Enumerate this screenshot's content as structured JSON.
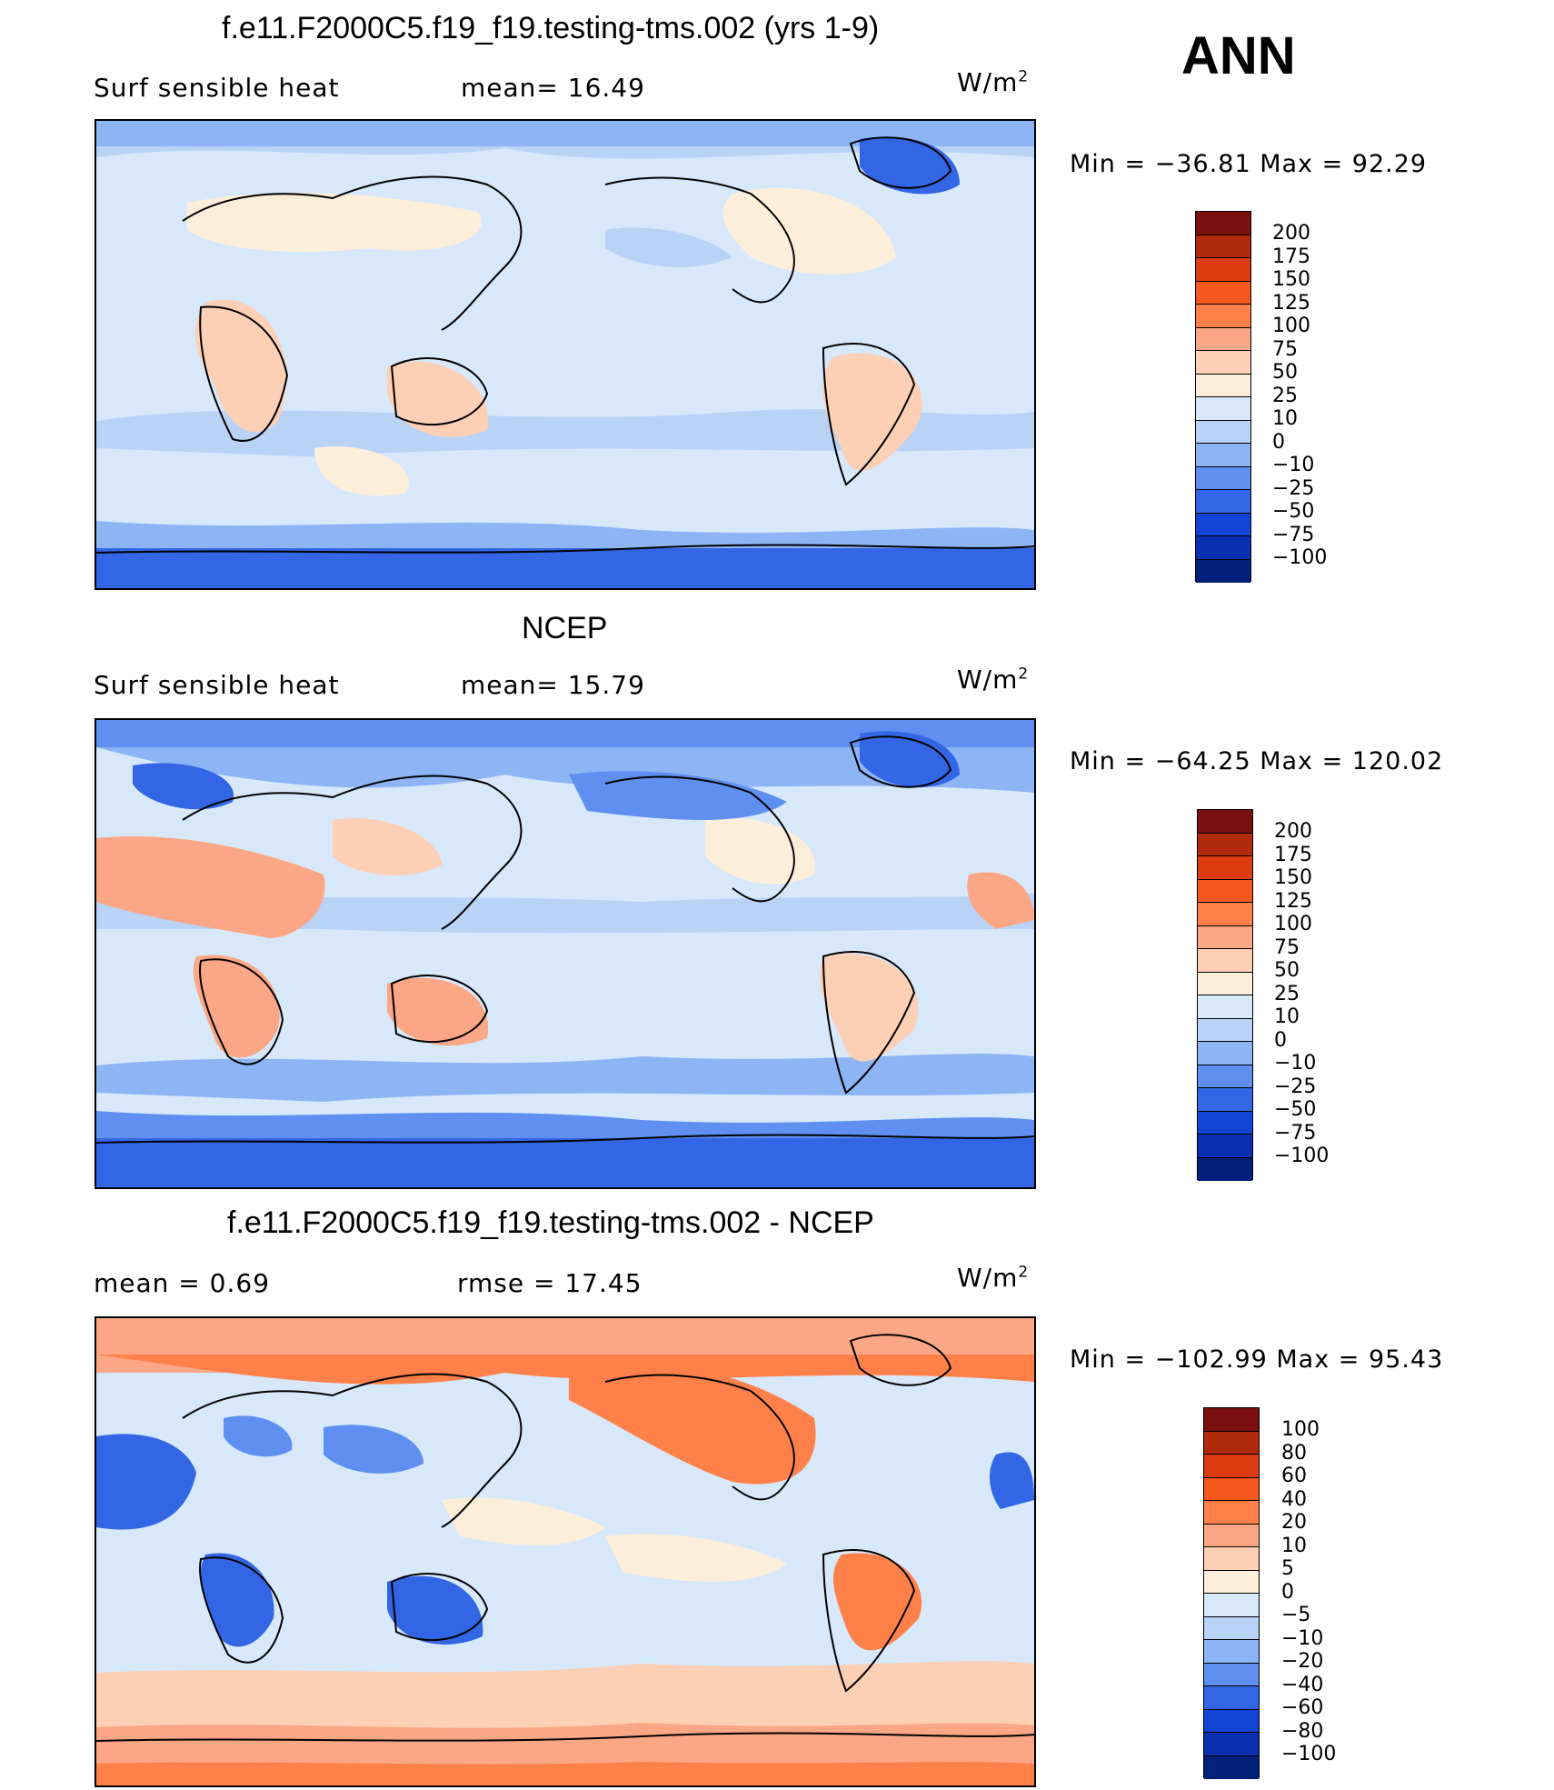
{
  "season": "ANN",
  "units_base": "W/m",
  "units_exp": "2",
  "panels": [
    {
      "title": "f.e11.F2000C5.f19_f19.testing-tms.002 (yrs 1-9)",
      "left_label": "Surf  sensible  heat",
      "center_label": "mean=   16.49",
      "minmax": "Min  =  −36.81  Max  =    92.29",
      "levels": [
        "200",
        "175",
        "150",
        "125",
        "100",
        "75",
        "50",
        "25",
        "10",
        "0",
        "−10",
        "−25",
        "−50",
        "−75",
        "−100"
      ]
    },
    {
      "title": "NCEP",
      "left_label": "Surf  sensible  heat",
      "center_label": "mean=   15.79",
      "minmax": "Min  =  −64.25  Max  =  120.02",
      "levels": [
        "200",
        "175",
        "150",
        "125",
        "100",
        "75",
        "50",
        "25",
        "10",
        "0",
        "−10",
        "−25",
        "−50",
        "−75",
        "−100"
      ]
    },
    {
      "title": "f.e11.F2000C5.f19_f19.testing-tms.002 - NCEP",
      "left_label": "mean  =      0.69",
      "center_label": "rmse  =    17.45",
      "minmax": "Min  =  −102.99  Max  =    95.43",
      "levels": [
        "100",
        "80",
        "60",
        "40",
        "20",
        "10",
        "5",
        "0",
        "−5",
        "−10",
        "−20",
        "−40",
        "−60",
        "−80",
        "−100"
      ]
    }
  ],
  "colors": {
    "abs_scale": [
      "#7a0f0f",
      "#b22a0c",
      "#dc3c10",
      "#f5581f",
      "#ff8149",
      "#fba684",
      "#fdcfb4",
      "#fdeed9",
      "#d7e8fb",
      "#b9d3f7",
      "#8db4f4",
      "#5f8ff0",
      "#3266e4",
      "#1244d6",
      "#0a2fb0",
      "#00207a"
    ],
    "diff_scale": [
      "#7a0f0f",
      "#b22a0c",
      "#dc3c10",
      "#f5581f",
      "#ff8149",
      "#fba684",
      "#fdcfb4",
      "#fdeed9",
      "#d7e8fb",
      "#b9d3f7",
      "#8db4f4",
      "#5f8ff0",
      "#3266e4",
      "#1244d6",
      "#0a2fb0",
      "#00207a"
    ]
  }
}
